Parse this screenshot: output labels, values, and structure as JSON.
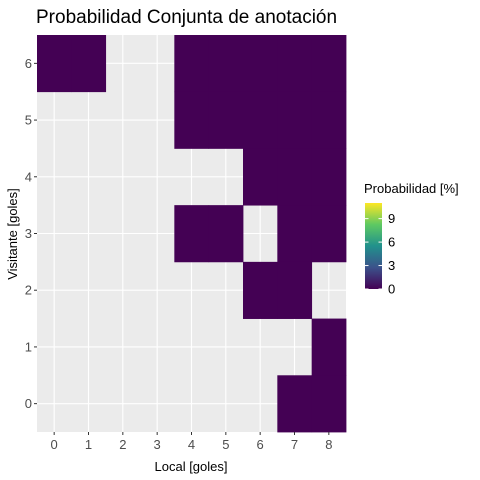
{
  "chart_data": {
    "type": "heatmap",
    "title": "Probabilidad Conjunta de anotación",
    "xlabel": "Local [goles]",
    "ylabel": "Visitante [goles]",
    "x_ticks": [
      "0",
      "1",
      "2",
      "3",
      "4",
      "5",
      "6",
      "7",
      "8"
    ],
    "y_ticks": [
      "0",
      "1",
      "2",
      "3",
      "4",
      "5",
      "6"
    ],
    "xlim": [
      -0.5,
      8.5
    ],
    "ylim": [
      -0.5,
      6.5
    ],
    "grid": true,
    "legend": {
      "title": "Probabilidad [%]",
      "placement": "right",
      "breaks": [
        "0",
        "3",
        "6",
        "9"
      ],
      "range": [
        0,
        11
      ],
      "colors": [
        "#440154",
        "#3b528b",
        "#21918c",
        "#5ec962",
        "#fde725"
      ]
    },
    "fill_color": "#440154",
    "panel_color": "#ebebeb",
    "grid_color": "#ffffff",
    "cells": [
      {
        "x": 0,
        "y": 6,
        "value": 0
      },
      {
        "x": 1,
        "y": 6,
        "value": 0
      },
      {
        "x": 4,
        "y": 6,
        "value": 0
      },
      {
        "x": 5,
        "y": 6,
        "value": 0
      },
      {
        "x": 6,
        "y": 6,
        "value": 0
      },
      {
        "x": 7,
        "y": 6,
        "value": 0
      },
      {
        "x": 8,
        "y": 6,
        "value": 0
      },
      {
        "x": 4,
        "y": 5,
        "value": 0
      },
      {
        "x": 5,
        "y": 5,
        "value": 0
      },
      {
        "x": 6,
        "y": 5,
        "value": 0
      },
      {
        "x": 7,
        "y": 5,
        "value": 0
      },
      {
        "x": 8,
        "y": 5,
        "value": 0
      },
      {
        "x": 6,
        "y": 4,
        "value": 0
      },
      {
        "x": 7,
        "y": 4,
        "value": 0
      },
      {
        "x": 8,
        "y": 4,
        "value": 0
      },
      {
        "x": 4,
        "y": 3,
        "value": 0
      },
      {
        "x": 5,
        "y": 3,
        "value": 0
      },
      {
        "x": 7,
        "y": 3,
        "value": 0
      },
      {
        "x": 8,
        "y": 3,
        "value": 0
      },
      {
        "x": 6,
        "y": 2,
        "value": 0
      },
      {
        "x": 7,
        "y": 2,
        "value": 0
      },
      {
        "x": 8,
        "y": 1,
        "value": 0
      },
      {
        "x": 7,
        "y": 0,
        "value": 0
      },
      {
        "x": 8,
        "y": 0,
        "value": 0
      }
    ]
  }
}
